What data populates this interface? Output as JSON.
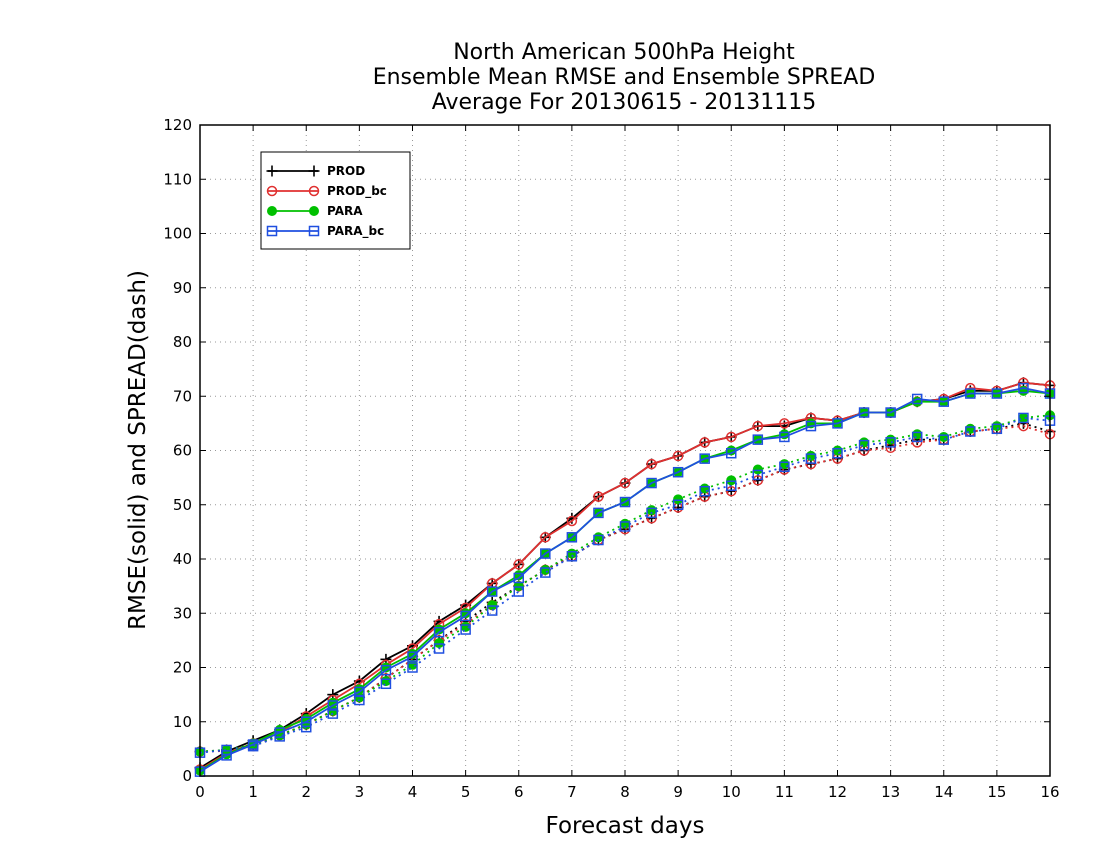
{
  "chart_data": {
    "type": "line",
    "title": [
      "North American 500hPa Height",
      "Ensemble Mean RMSE and Ensemble SPREAD",
      "Average For 20130615 - 20131115"
    ],
    "xlabel": "Forecast days",
    "ylabel": "RMSE(solid) and SPREAD(dash)",
    "xlim": [
      0,
      16
    ],
    "ylim": [
      0,
      120
    ],
    "xticks": [
      0,
      1,
      2,
      3,
      4,
      5,
      6,
      7,
      8,
      9,
      10,
      11,
      12,
      13,
      14,
      15,
      16
    ],
    "yticks": [
      0,
      10,
      20,
      30,
      40,
      50,
      60,
      70,
      80,
      90,
      100,
      110,
      120
    ],
    "grid": true,
    "legend_position": "top-left",
    "x": [
      0,
      0.5,
      1,
      1.5,
      2,
      2.5,
      3,
      3.5,
      4,
      4.5,
      5,
      5.5,
      6,
      6.5,
      7,
      7.5,
      8,
      8.5,
      9,
      9.5,
      10,
      10.5,
      11,
      11.5,
      12,
      12.5,
      13,
      13.5,
      14,
      14.5,
      15,
      15.5,
      16
    ],
    "series": [
      {
        "name": "PROD",
        "color": "#000000",
        "marker": "plus",
        "rmse": [
          1.5,
          4.5,
          6.5,
          8.5,
          11.5,
          15.0,
          17.5,
          21.5,
          24.0,
          28.5,
          31.5,
          35.5,
          39.0,
          44.0,
          47.5,
          51.5,
          54.0,
          57.5,
          59.0,
          61.5,
          62.5,
          64.5,
          64.5,
          66.0,
          65.5,
          67.0,
          67.0,
          69.0,
          69.5,
          71.0,
          71.0,
          72.5,
          72.0
        ],
        "spread": [
          4.5,
          4.8,
          5.8,
          7.5,
          9.5,
          12.0,
          14.5,
          18.0,
          21.5,
          25.0,
          28.5,
          32.0,
          35.0,
          38.0,
          40.5,
          43.5,
          45.5,
          47.5,
          49.5,
          51.5,
          52.5,
          54.5,
          56.5,
          57.5,
          58.5,
          60.0,
          61.0,
          62.0,
          62.0,
          63.5,
          64.0,
          65.0,
          63.5
        ]
      },
      {
        "name": "PROD_bc",
        "color": "#e03030",
        "marker": "circle",
        "rmse": [
          1.2,
          4.2,
          6.0,
          8.0,
          11.0,
          14.0,
          17.0,
          20.5,
          23.5,
          28.0,
          31.0,
          35.5,
          39.0,
          44.0,
          47.0,
          51.5,
          54.0,
          57.5,
          59.0,
          61.5,
          62.5,
          64.5,
          65.0,
          66.0,
          65.5,
          67.0,
          67.0,
          69.0,
          69.5,
          71.5,
          71.0,
          72.5,
          72.0
        ],
        "spread": [
          4.5,
          4.6,
          5.5,
          7.5,
          9.5,
          12.0,
          14.5,
          18.0,
          21.5,
          25.0,
          28.0,
          31.5,
          35.0,
          38.0,
          40.5,
          43.5,
          45.5,
          47.5,
          49.5,
          51.5,
          52.5,
          54.5,
          56.5,
          57.5,
          58.5,
          60.0,
          60.5,
          61.5,
          62.0,
          63.5,
          64.0,
          64.5,
          63.0
        ]
      },
      {
        "name": "PARA",
        "color": "#00c000",
        "marker": "filled-circle",
        "rmse": [
          1.0,
          4.0,
          6.0,
          8.5,
          10.5,
          13.5,
          16.0,
          20.0,
          22.5,
          27.0,
          30.0,
          34.0,
          37.0,
          41.0,
          44.0,
          48.5,
          50.5,
          54.0,
          56.0,
          58.5,
          60.0,
          62.0,
          63.0,
          65.0,
          65.0,
          67.0,
          67.0,
          69.0,
          69.0,
          70.5,
          70.5,
          71.0,
          70.5
        ],
        "spread": [
          4.5,
          4.8,
          5.8,
          7.5,
          9.5,
          12.0,
          14.5,
          17.5,
          20.5,
          24.5,
          27.5,
          31.5,
          35.0,
          38.0,
          41.0,
          44.0,
          46.5,
          49.0,
          51.0,
          53.0,
          54.5,
          56.5,
          57.5,
          59.0,
          60.0,
          61.5,
          62.0,
          63.0,
          62.5,
          64.0,
          64.5,
          66.0,
          66.5
        ]
      },
      {
        "name": "PARA_bc",
        "color": "#1f4fe0",
        "marker": "square",
        "rmse": [
          0.8,
          3.8,
          5.8,
          8.0,
          10.0,
          13.0,
          15.5,
          19.5,
          22.0,
          26.5,
          29.5,
          34.0,
          36.5,
          41.0,
          44.0,
          48.5,
          50.5,
          54.0,
          56.0,
          58.5,
          59.5,
          62.0,
          62.5,
          64.5,
          65.0,
          67.0,
          67.0,
          69.5,
          69.0,
          70.5,
          70.5,
          71.5,
          70.5
        ],
        "spread": [
          4.3,
          4.8,
          5.5,
          7.3,
          9.0,
          11.5,
          14.0,
          17.0,
          20.0,
          23.5,
          27.0,
          30.5,
          34.0,
          37.5,
          40.5,
          43.5,
          46.0,
          48.5,
          50.0,
          52.5,
          53.5,
          55.5,
          57.0,
          58.5,
          59.5,
          61.0,
          61.5,
          62.5,
          62.0,
          63.5,
          64.0,
          66.0,
          65.5
        ]
      }
    ]
  }
}
